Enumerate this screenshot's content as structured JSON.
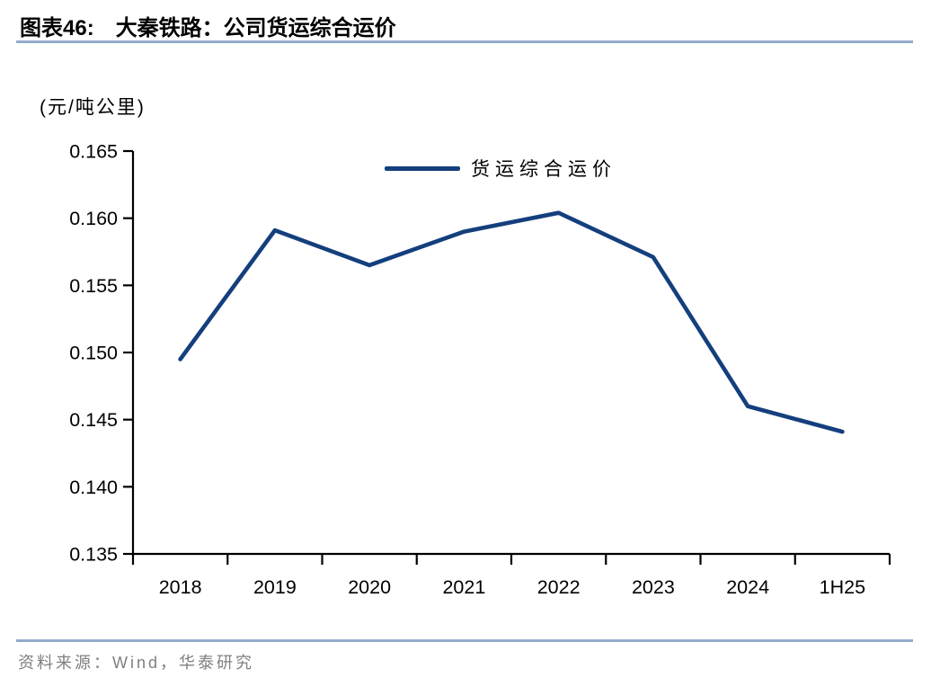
{
  "figure": {
    "label": "图表46:",
    "title": "大秦铁路：公司货运综合运价"
  },
  "unit_label": "(元/吨公里)",
  "legend_label": "货运综合运价",
  "source_text": "资料来源：Wind，华泰研究",
  "colors": {
    "line": "#143F7D",
    "separator": "#93ABCB",
    "axis": "#000000",
    "source_text": "#7F7F7F"
  },
  "chart_data": {
    "type": "line",
    "title": "大秦铁路：公司货运综合运价",
    "categories": [
      "2018",
      "2019",
      "2020",
      "2021",
      "2022",
      "2023",
      "2024",
      "1H25"
    ],
    "series": [
      {
        "name": "货运综合运价",
        "values": [
          0.1495,
          0.1591,
          0.1565,
          0.159,
          0.1604,
          0.1571,
          0.146,
          0.1441
        ]
      }
    ],
    "xlabel": "",
    "ylabel": "(元/吨公里)",
    "ylim": [
      0.135,
      0.165
    ],
    "yticks": [
      0.135,
      0.14,
      0.145,
      0.15,
      0.155,
      0.16,
      0.165
    ],
    "ytick_decimals": 3,
    "grid": false,
    "legend_position": "top-center",
    "source": "资料来源：Wind，华泰研究"
  }
}
